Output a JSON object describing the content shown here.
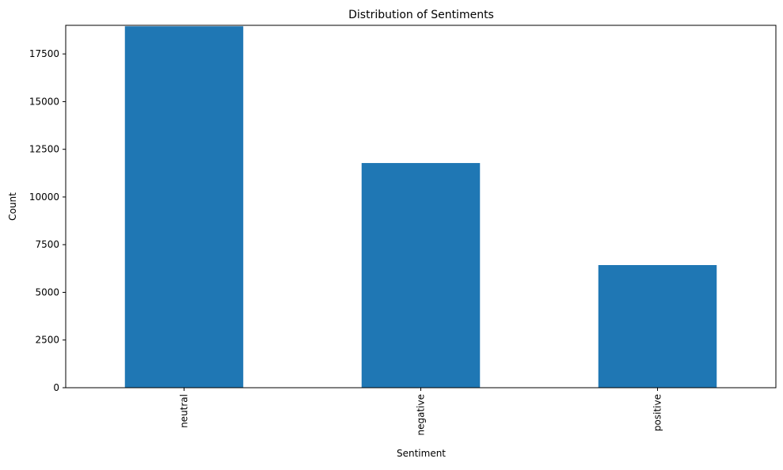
{
  "chart_data": {
    "type": "bar",
    "title": "Distribution of Sentiments",
    "xlabel": "Sentiment",
    "ylabel": "Count",
    "categories": [
      "neutral",
      "negative",
      "positive"
    ],
    "values": [
      18950,
      11780,
      6430
    ],
    "ylim": [
      0,
      19000
    ],
    "yticks": [
      0,
      2500,
      5000,
      7500,
      10000,
      12500,
      15000,
      17500
    ],
    "grid": false,
    "legend": "none",
    "bar_color": "#1f77b4",
    "x_tick_rotation": "vertical"
  }
}
